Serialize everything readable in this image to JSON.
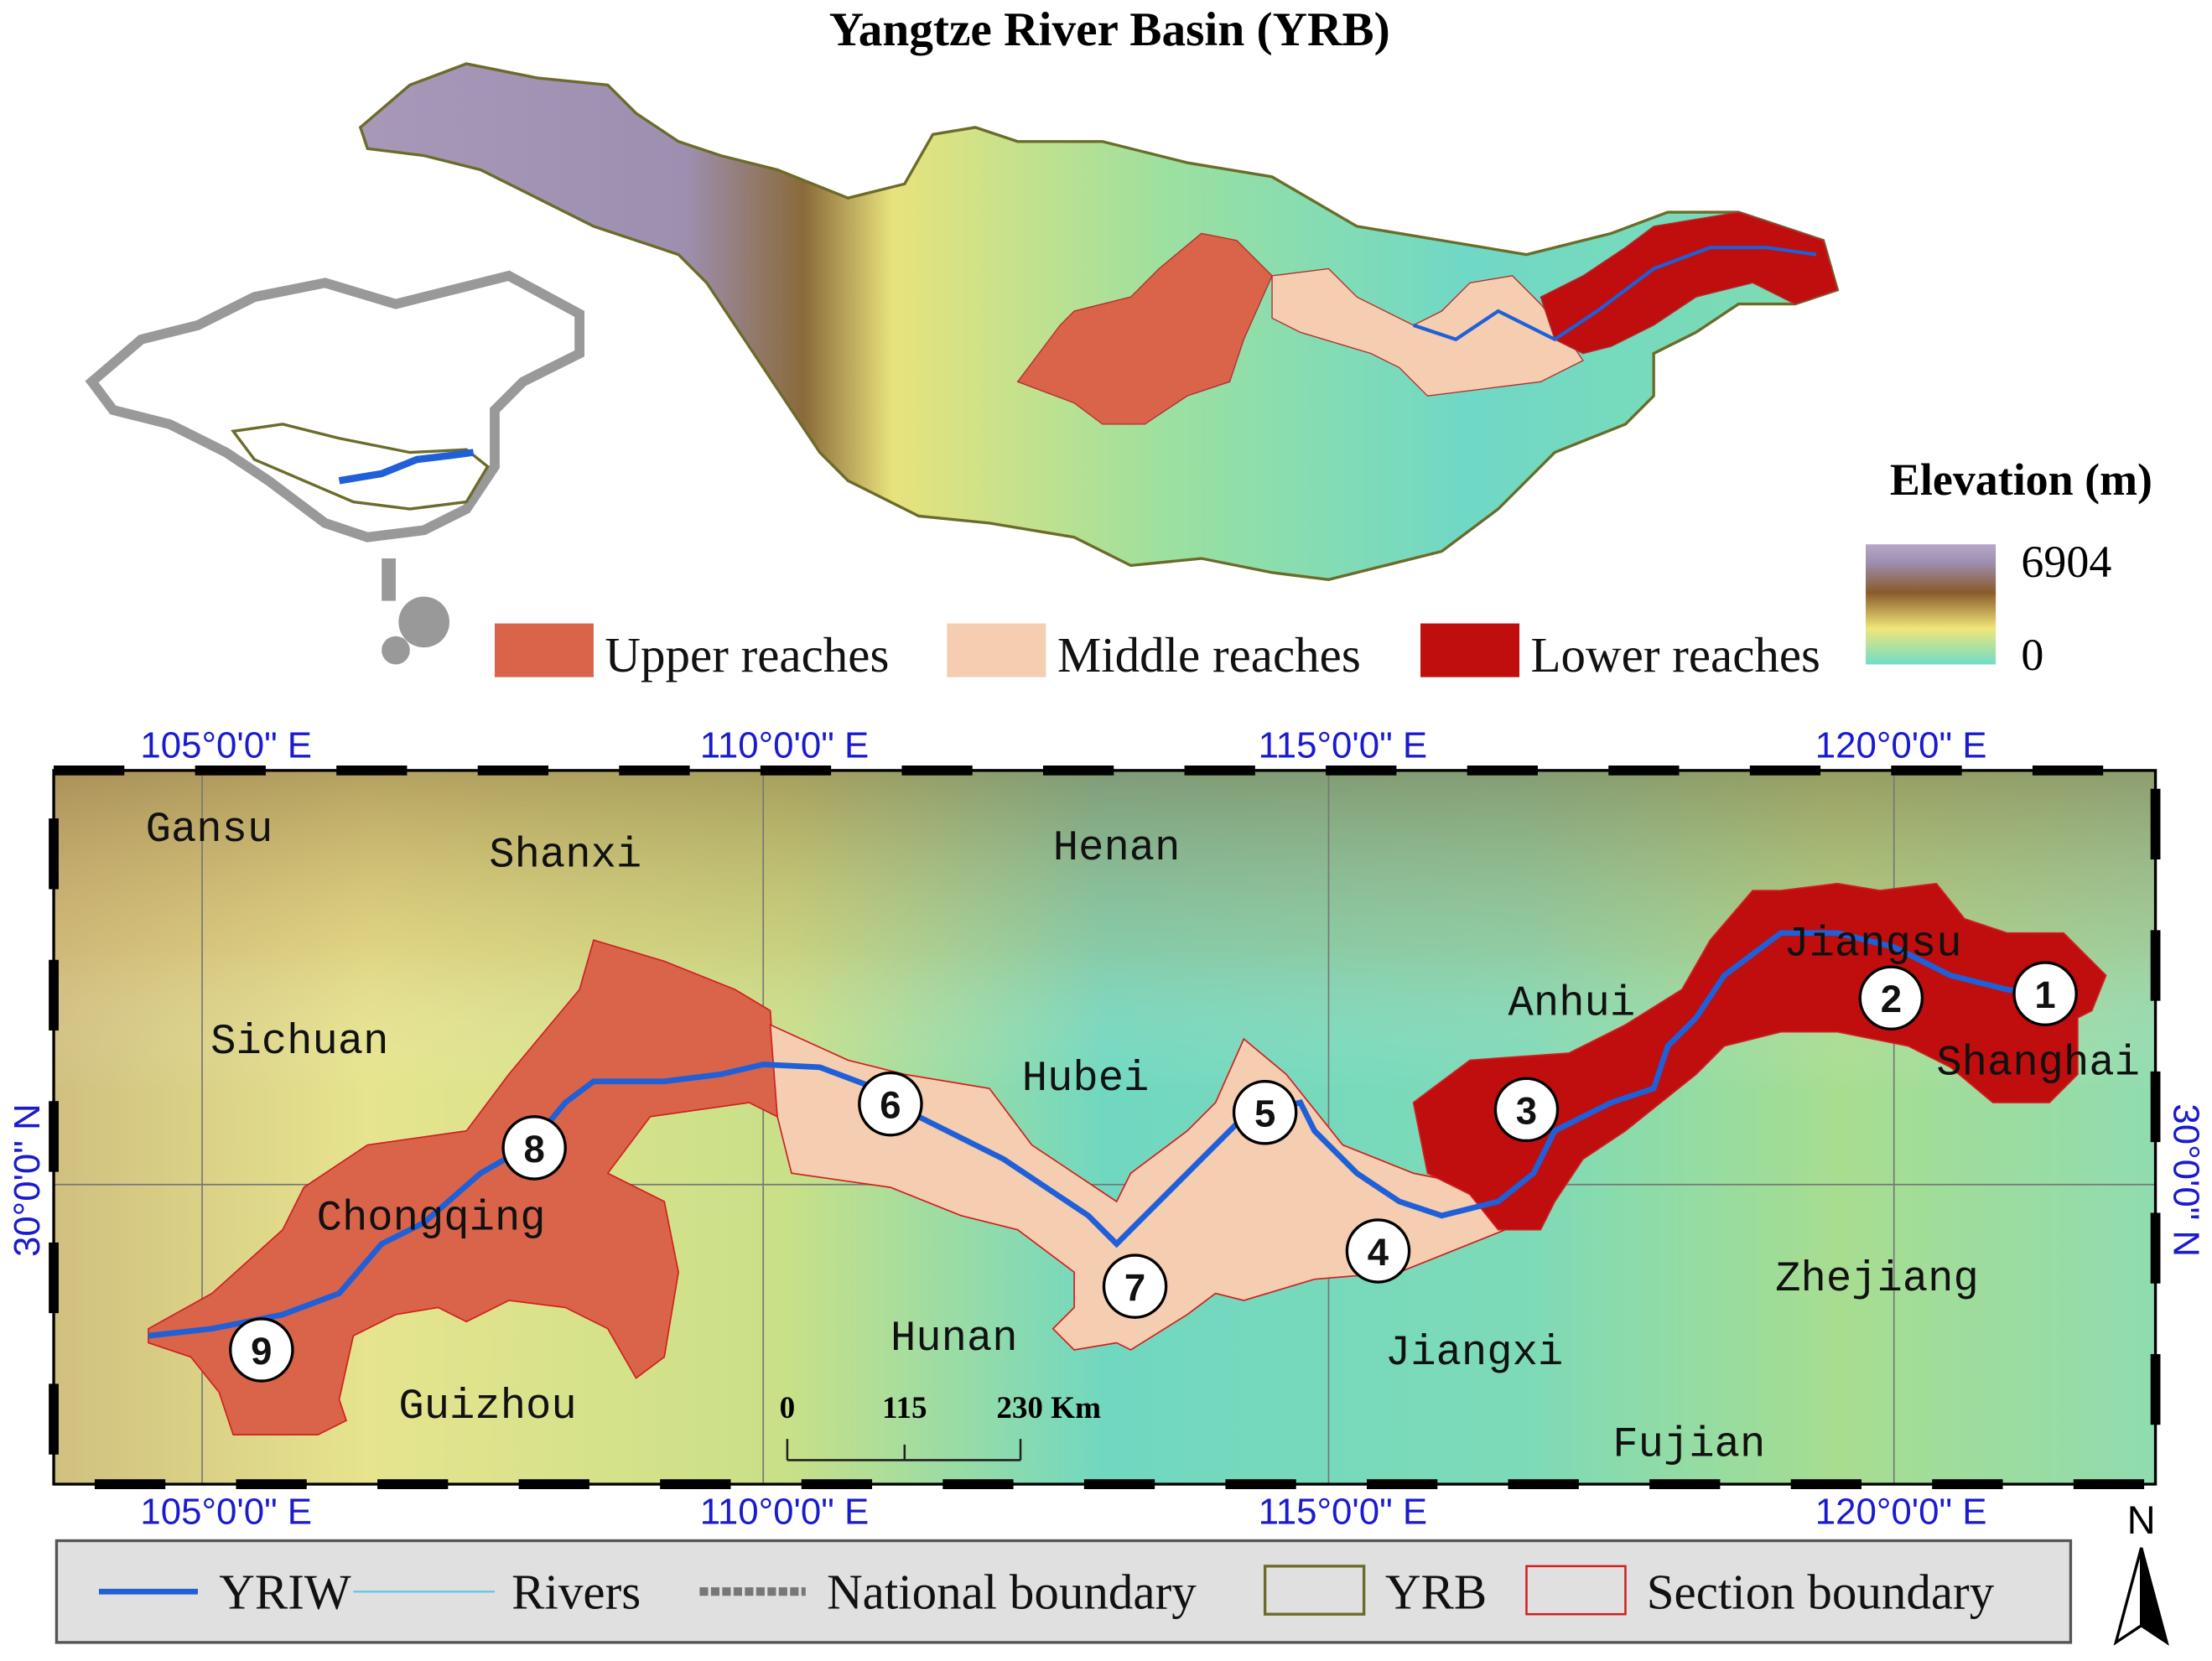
{
  "header": {
    "title": "Yangtze River Basin (YRB)"
  },
  "reach_legend": [
    {
      "label": "Upper reaches",
      "color": "#d9644a"
    },
    {
      "label": "Middle reaches",
      "color": "#f5cdb0"
    },
    {
      "label": "Lower reaches",
      "color": "#c00d0d"
    }
  ],
  "elevation_legend": {
    "title": "Elevation (m)",
    "max": "6904",
    "min": "0"
  },
  "map": {
    "top_labels": [
      "105°0'0\"  E",
      "110°0'0\"  E",
      "115°0'0\"  E",
      "120°0'0\"  E"
    ],
    "bottom_labels": [
      "105°0'0\"  E",
      "110°0'0\"  E",
      "115°0'0\"  E",
      "120°0'0\"  E"
    ],
    "left_label": "30°0'0\" N",
    "right_label": "30°0'0\" N",
    "provinces": [
      "Gansu",
      "Shanxi",
      "Henan",
      "Sichuan",
      "Hubei",
      "Anhui",
      "Jiangsu",
      "Shanghai",
      "Chongqing",
      "Hunan",
      "Jiangxi",
      "Zhejiang",
      "Guizhou",
      "Fujian"
    ],
    "sections": [
      "1",
      "2",
      "3",
      "4",
      "5",
      "6",
      "7",
      "8",
      "9"
    ],
    "scale_bar": [
      "0",
      "115",
      "230 Km"
    ],
    "north": "N"
  },
  "legend": [
    "YRIW",
    "Rivers",
    "National boundary",
    "YRB",
    "Section boundary"
  ]
}
